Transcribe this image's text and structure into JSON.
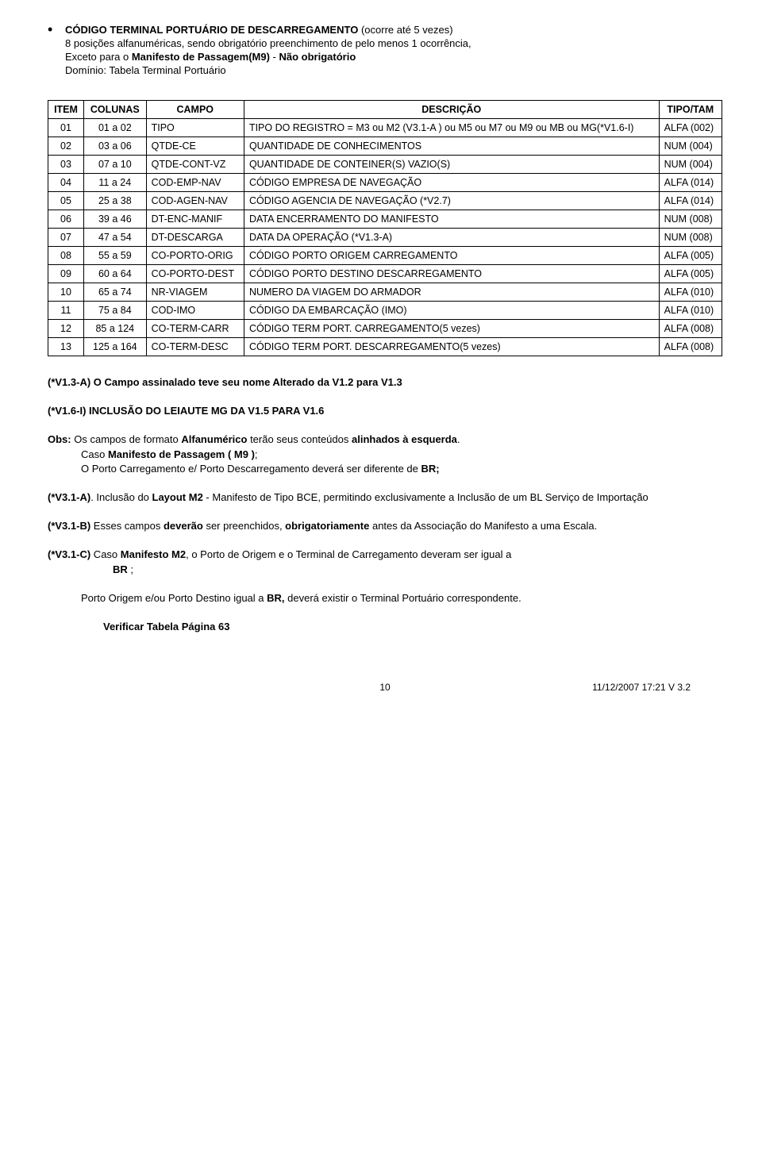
{
  "bullet": {
    "title_bold": "CÓDIGO TERMINAL PORTUÁRIO DE DESCARREGAMENTO",
    "title_paren": "(ocorre até 5 vezes)",
    "line1": "8 posições alfanuméricas, sendo obrigatório preenchimento de  pelo menos 1 ocorrência,",
    "line2_a": "Exceto para o ",
    "line2_b": "Manifesto de Passagem(M9)",
    "line2_c": "  - ",
    "line2_d": "Não obrigatório",
    "line3": "Domínio: Tabela Terminal Portuário"
  },
  "table": {
    "headers": [
      "ITEM",
      "COLUNAS",
      "CAMPO",
      "DESCRIÇÃO",
      "TIPO/TAM"
    ],
    "rows": [
      {
        "item": "01",
        "col": "01  a  02",
        "campo": "TIPO",
        "desc": "TIPO DO REGISTRO = M3 ou M2 (V3.1-A )  ou  M5  ou M7  ou  M9 ou MB ou MG(*V1.6-I)",
        "tipo": "ALFA (002)"
      },
      {
        "item": "02",
        "col": "03  a  06",
        "campo": "QTDE-CE",
        "desc": "QUANTIDADE DE CONHECIMENTOS",
        "tipo": "NUM (004)"
      },
      {
        "item": "03",
        "col": "07  a  10",
        "campo": "QTDE-CONT-VZ",
        "desc": "QUANTIDADE DE CONTEINER(S) VAZIO(S)",
        "tipo": "NUM (004)"
      },
      {
        "item": "04",
        "col": "11  a  24",
        "campo": "COD-EMP-NAV",
        "desc": "CÓDIGO EMPRESA DE NAVEGAÇÃO",
        "tipo": "ALFA (014)"
      },
      {
        "item": "05",
        "col": "25  a  38",
        "campo": "COD-AGEN-NAV",
        "desc": "CÓDIGO AGENCIA DE NAVEGAÇÃO          (*V2.7)",
        "tipo": "ALFA (014)"
      },
      {
        "item": "06",
        "col": "39  a  46",
        "campo": "DT-ENC-MANIF",
        "desc": "DATA ENCERRAMENTO DO MANIFESTO",
        "tipo": "NUM (008)"
      },
      {
        "item": "07",
        "col": "47  a  54",
        "campo": "DT-DESCARGA",
        "desc": "DATA DA OPERAÇÃO (*V1.3-A)",
        "tipo": "NUM (008)"
      },
      {
        "item": "08",
        "col": "55  a  59",
        "campo": "CO-PORTO-ORIG",
        "desc": "CÓDIGO  PORTO ORIGEM  CARREGAMENTO",
        "tipo": "ALFA (005)"
      },
      {
        "item": "09",
        "col": "60  a  64",
        "campo": "CO-PORTO-DEST",
        "desc": "CÓDIGO  PORTO DESTINO DESCARREGAMENTO",
        "tipo": "ALFA (005)"
      },
      {
        "item": "10",
        "col": "65  a  74",
        "campo": "NR-VIAGEM",
        "desc": "NUMERO DA VIAGEM DO ARMADOR",
        "tipo": "ALFA (010)"
      },
      {
        "item": "11",
        "col": "75  a  84",
        "campo": "COD-IMO",
        "desc": "CÓDIGO DA EMBARCAÇÃO (IMO)",
        "tipo": "ALFA (010)"
      },
      {
        "item": "12",
        "col": "85  a 124",
        "campo": "CO-TERM-CARR",
        "desc": "CÓDIGO TERM PORT. CARREGAMENTO(5 vezes)",
        "tipo": "ALFA (008)"
      },
      {
        "item": "13",
        "col": "125  a  164",
        "campo": "CO-TERM-DESC",
        "desc": "CÓDIGO TERM PORT. DESCARREGAMENTO(5 vezes)",
        "tipo": "ALFA (008)"
      }
    ]
  },
  "notes": {
    "n1": "(*V1.3-A) O Campo assinalado  teve  seu nome Alterado da V1.2 para V1.3",
    "n2": "(*V1.6-I)  INCLUSÃO DO LEIAUTE MG DA V1.5 PARA V1.6",
    "obs_label": "Obs:",
    "obs1a": "Os  campos de  formato ",
    "obs1b": "Alfanumérico",
    "obs1c": " terão seus conteúdos ",
    "obs1d": "alinhados à esquerda",
    "obs1e": ".",
    "obs2a": "Caso ",
    "obs2b": "Manifesto de Passagem ( M9 )",
    "obs2c": ";",
    "obs3a": "O Porto Carregamento  e/  Porto Descarregamento deverá ser diferente de ",
    "obs3b": "BR;",
    "v31a_label": "(*V3.1-A)",
    "v31a_a": ". Inclusão do ",
    "v31a_b": "Layout   M2",
    "v31a_c": " - Manifesto de Tipo BCE, permitindo exclusivamente a Inclusão de um   BL Serviço de Importação",
    "v31b_label": "(*V3.1-B)",
    "v31b_a": " Esses campos ",
    "v31b_b": "deverão",
    "v31b_c": " ser preenchidos, ",
    "v31b_d": "obrigatoriamente",
    "v31b_e": " antes da Associação do Manifesto a uma Escala.",
    "v31c_label": "(*V3.1-C)",
    "v31c_a": " Caso ",
    "v31c_b": "Manifesto M2",
    "v31c_c": ", o Porto de Origem e o Terminal  de Carregamento deveram ser igual a ",
    "v31c_d": "BR",
    "v31c_e": " ;",
    "porto_a": "Porto Origem e/ou Porto Destino igual a ",
    "porto_b": "BR,",
    "porto_c": " deverá existir o Terminal Portuário correspondente.",
    "verificar": "Verificar   Tabela Página 63"
  },
  "footer": {
    "page": "10",
    "date": "11/12/2007   17:21   V 3.2"
  }
}
